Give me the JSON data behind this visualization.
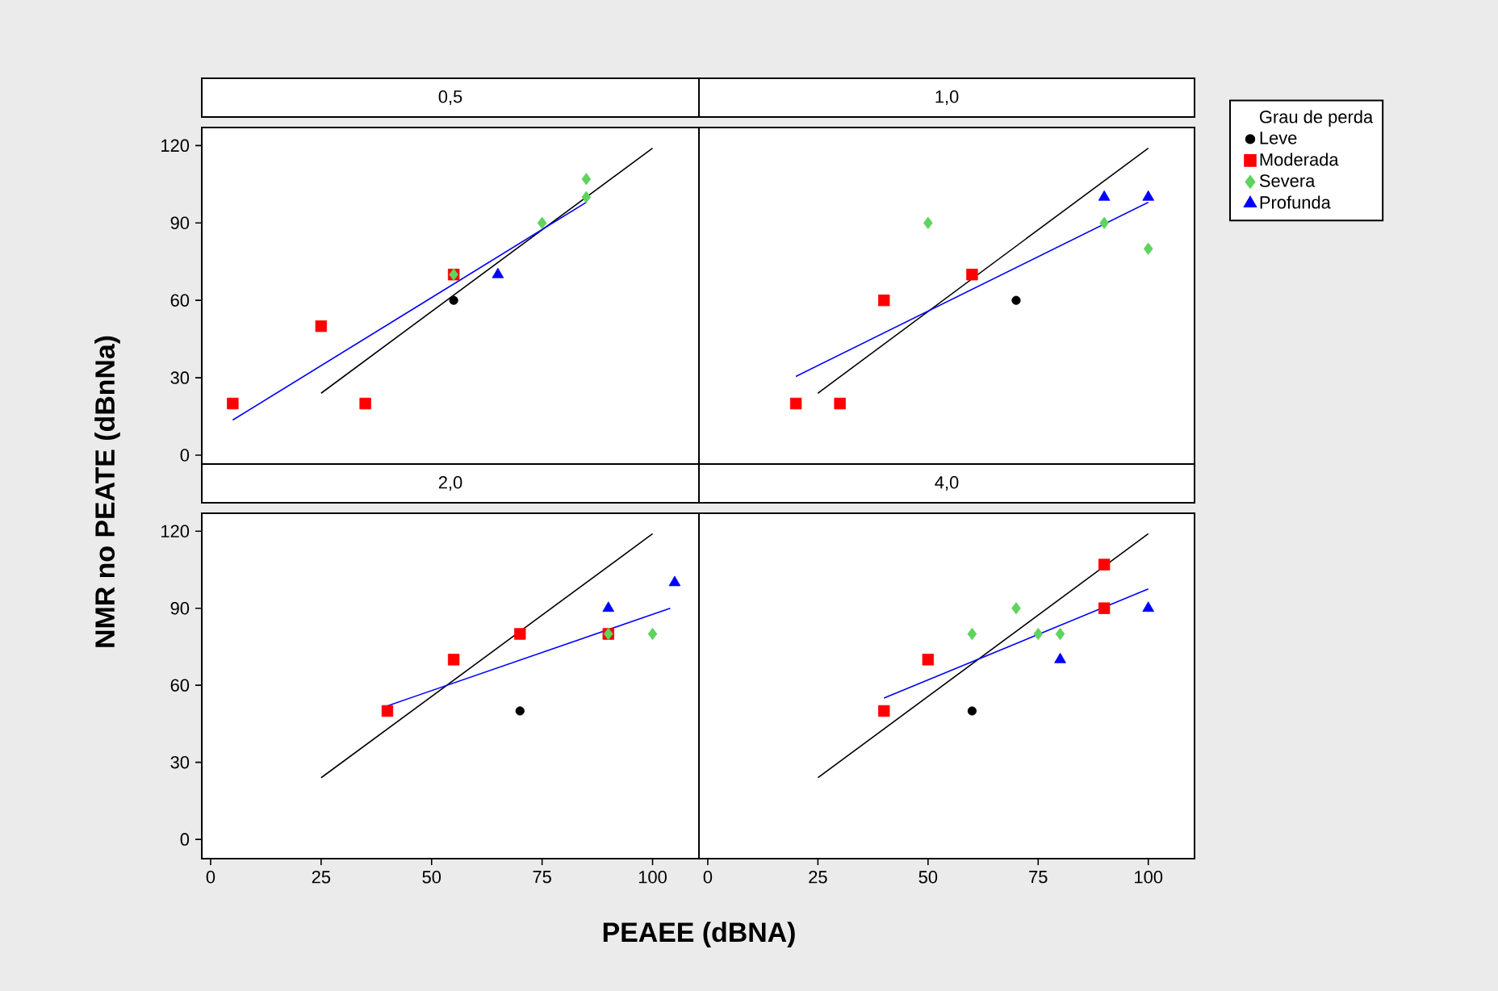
{
  "chart_data": [
    {
      "type": "scatter",
      "title": "0,5",
      "ylabel": "NMR no PEATE (dBnNa)",
      "xlim": [
        -2,
        110.5
      ],
      "ylim": [
        -7.5,
        127
      ],
      "xticks": [
        0,
        25,
        50,
        75,
        100
      ],
      "yticks": [
        0,
        30,
        60,
        90,
        120
      ],
      "tick_labels": "y",
      "series": [
        {
          "color": "#000000",
          "marker": "circle",
          "x": [
            55
          ],
          "values": [
            60
          ]
        },
        {
          "color": "#ff0000",
          "marker": "square",
          "x": [
            5,
            25,
            35,
            55
          ],
          "values": [
            20,
            50,
            20,
            70
          ]
        },
        {
          "color": "#5fd35f",
          "marker": "diamond",
          "x": [
            55,
            75,
            85,
            85
          ],
          "values": [
            70,
            90,
            107,
            100
          ]
        },
        {
          "color": "#0000ff",
          "marker": "triangle",
          "x": [
            65
          ],
          "values": [
            70
          ]
        },
        {
          "type": "line",
          "color": "#000000",
          "marker": "none",
          "x": [
            25,
            100
          ],
          "values": [
            24,
            119
          ]
        },
        {
          "type": "line",
          "color": "#0000ff",
          "marker": "none",
          "x": [
            5,
            85
          ],
          "values": [
            13.6,
            98
          ]
        }
      ]
    },
    {
      "type": "scatter",
      "title": "1,0",
      "xlim": [
        -2,
        110.5
      ],
      "ylim": [
        -7.5,
        127
      ],
      "xticks": [
        0,
        25,
        50,
        75,
        100
      ],
      "yticks": [
        0,
        30,
        60,
        90,
        120
      ],
      "tick_labels": false,
      "legend": "right",
      "legend_title": "Grau de perda",
      "series": [
        {
          "name": "Leve",
          "color": "#000000",
          "marker": "circle",
          "x": [
            70
          ],
          "values": [
            60
          ]
        },
        {
          "name": "Moderada",
          "color": "#ff0000",
          "marker": "square",
          "x": [
            20,
            30,
            40,
            60
          ],
          "values": [
            20,
            20,
            60,
            70
          ]
        },
        {
          "name": "Severa",
          "color": "#5fd35f",
          "marker": "diamond",
          "x": [
            50,
            90,
            100
          ],
          "values": [
            90,
            90,
            80
          ]
        },
        {
          "name": "Profunda",
          "color": "#0000ff",
          "marker": "triangle",
          "x": [
            90,
            100
          ],
          "values": [
            100,
            100
          ]
        },
        {
          "type": "line",
          "color": "#000000",
          "marker": "none",
          "x": [
            25,
            100
          ],
          "values": [
            24,
            119
          ]
        },
        {
          "type": "line",
          "color": "#0000ff",
          "marker": "none",
          "x": [
            20,
            100
          ],
          "values": [
            30.5,
            98
          ]
        }
      ]
    },
    {
      "type": "scatter",
      "title": "2,0",
      "xlabel": "PEAEE (dBNA)",
      "xlim": [
        -2,
        110.5
      ],
      "ylim": [
        -7.5,
        127
      ],
      "xticks": [
        0,
        25,
        50,
        75,
        100
      ],
      "yticks": [
        0,
        30,
        60,
        90,
        120
      ],
      "series": [
        {
          "color": "#000000",
          "marker": "circle",
          "x": [
            70
          ],
          "values": [
            50
          ]
        },
        {
          "color": "#ff0000",
          "marker": "square",
          "x": [
            40,
            55,
            70,
            90
          ],
          "values": [
            50,
            70,
            80,
            80
          ]
        },
        {
          "color": "#5fd35f",
          "marker": "diamond",
          "x": [
            90,
            100
          ],
          "values": [
            80,
            80
          ]
        },
        {
          "color": "#0000ff",
          "marker": "triangle",
          "x": [
            90,
            105
          ],
          "values": [
            90,
            100
          ]
        },
        {
          "type": "line",
          "color": "#000000",
          "marker": "none",
          "x": [
            25,
            100
          ],
          "values": [
            24,
            119
          ]
        },
        {
          "type": "line",
          "color": "#0000ff",
          "marker": "none",
          "x": [
            40,
            104
          ],
          "values": [
            52,
            90
          ]
        }
      ]
    },
    {
      "type": "scatter",
      "title": "4,0",
      "xlim": [
        -2,
        110.5
      ],
      "ylim": [
        -7.5,
        127
      ],
      "xticks": [
        0,
        25,
        50,
        75,
        100
      ],
      "yticks": [
        0,
        30,
        60,
        90,
        120
      ],
      "tick_labels": "x",
      "series": [
        {
          "color": "#000000",
          "marker": "circle",
          "x": [
            60
          ],
          "values": [
            50
          ]
        },
        {
          "color": "#ff0000",
          "marker": "square",
          "x": [
            40,
            50,
            90,
            90
          ],
          "values": [
            50,
            70,
            107,
            90
          ]
        },
        {
          "color": "#5fd35f",
          "marker": "diamond",
          "x": [
            60,
            70,
            75,
            80
          ],
          "values": [
            80,
            90,
            80,
            80
          ]
        },
        {
          "color": "#0000ff",
          "marker": "triangle",
          "x": [
            80,
            100
          ],
          "values": [
            70,
            90
          ]
        },
        {
          "type": "line",
          "color": "#000000",
          "marker": "none",
          "x": [
            25,
            100
          ],
          "values": [
            24,
            119
          ]
        },
        {
          "type": "line",
          "color": "#0000ff",
          "marker": "none",
          "x": [
            40,
            100
          ],
          "values": [
            55,
            97.5
          ]
        }
      ]
    }
  ]
}
